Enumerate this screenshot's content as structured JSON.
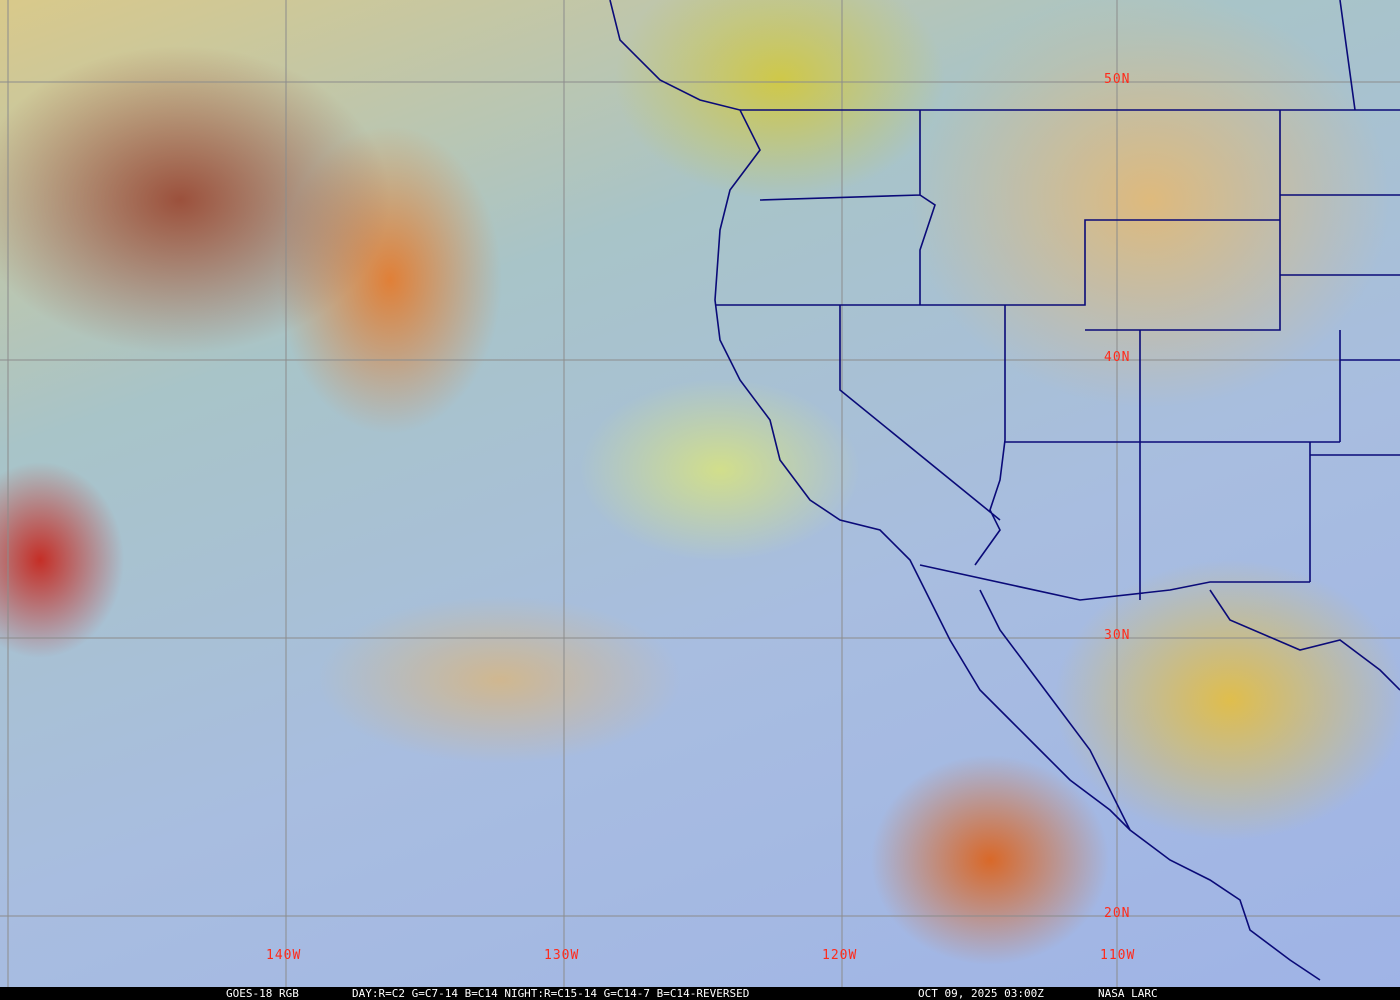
{
  "map": {
    "latitude_labels": [
      "50N",
      "40N",
      "30N",
      "20N"
    ],
    "longitude_labels": [
      "140W",
      "130W",
      "120W",
      "110W"
    ],
    "grid_color": "#8c8c8c",
    "label_color": "#ff2a1a",
    "boundary_color": "#0a0a78"
  },
  "status_bar": {
    "satellite": "GOES-18 RGB",
    "recipe": "DAY:R=C2 G=C7-14 B=C14 NIGHT:R=C15-14 G=C14-7 B=C14-REVERSED",
    "timestamp": "OCT 09, 2025 03:00Z",
    "credit": "NASA LARC"
  }
}
